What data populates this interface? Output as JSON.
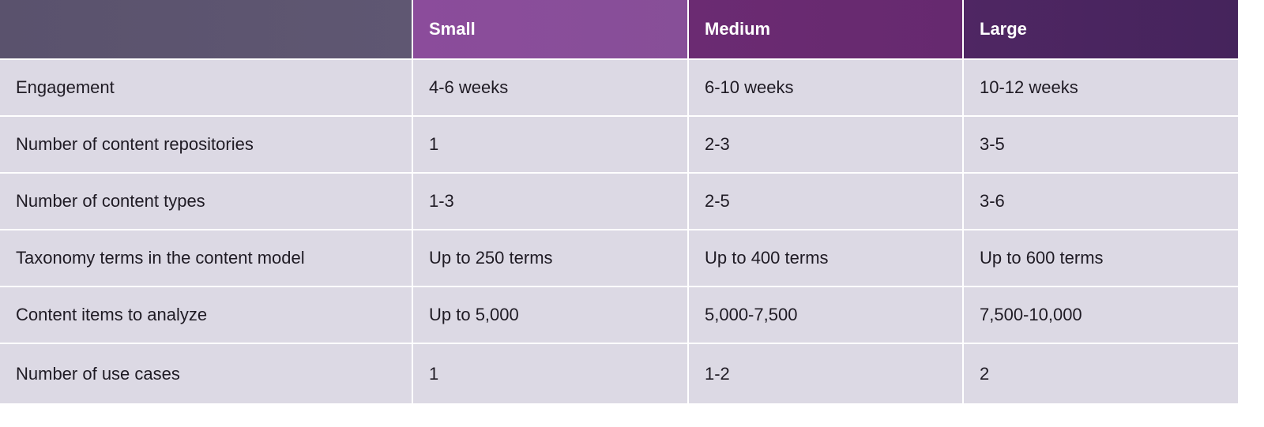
{
  "table": {
    "headers": [
      "Small",
      "Medium",
      "Large"
    ],
    "rows": [
      [
        "Engagement",
        "4-6 weeks",
        "6-10 weeks",
        "10-12 weeks"
      ],
      [
        "Number of content repositories",
        "1",
        "2-3",
        "3-5"
      ],
      [
        "Number of content types",
        "1-3",
        "2-5",
        "3-6"
      ],
      [
        "Taxonomy terms in the content model",
        "Up to 250 terms",
        "Up to 400 terms",
        "Up to 600 terms"
      ],
      [
        "Content items to analyze",
        "Up to 5,000",
        "5,000-7,500",
        "7,500-10,000"
      ],
      [
        "Number of use cases",
        "1",
        "1-2",
        "2"
      ]
    ]
  }
}
